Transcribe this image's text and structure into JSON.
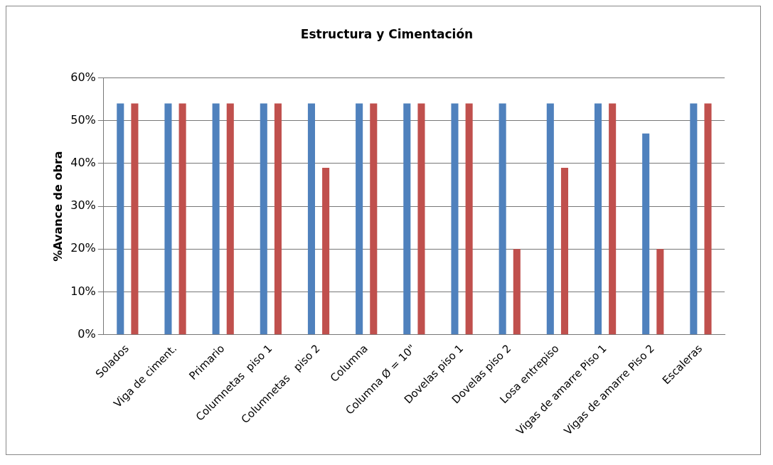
{
  "chart_data": {
    "type": "bar",
    "title": "Estructura y Cimentación",
    "ylabel": "%Avance de obra",
    "categories": [
      "Solados",
      "Viga de ciment.",
      "Primario",
      "Columnetas  piso 1",
      "Columnetas   piso 2",
      "Columna",
      "Columna Ø = 10\"",
      "Dovelas piso 1",
      "Dovelas piso 2",
      "Losa entrepiso",
      "Vigas de amarre Piso 1",
      "Vigas de amarre Piso 2",
      "Escaleras"
    ],
    "series": [
      {
        "color": "#4f81bd",
        "values": [
          54,
          54,
          54,
          54,
          54,
          54,
          54,
          54,
          54,
          54,
          54,
          47,
          54
        ]
      },
      {
        "color": "#c0504d",
        "values": [
          54,
          54,
          54,
          54,
          39,
          54,
          54,
          54,
          20,
          39,
          54,
          20,
          54
        ]
      }
    ],
    "ylim": [
      0,
      60
    ],
    "yticks": [
      {
        "value": 0,
        "label": "0%"
      },
      {
        "value": 10,
        "label": "10%"
      },
      {
        "value": 20,
        "label": "20%"
      },
      {
        "value": 30,
        "label": "30%"
      },
      {
        "value": 40,
        "label": "40%"
      },
      {
        "value": 50,
        "label": "50%"
      },
      {
        "value": 60,
        "label": "60%"
      }
    ],
    "grid": "y",
    "legend": false
  }
}
